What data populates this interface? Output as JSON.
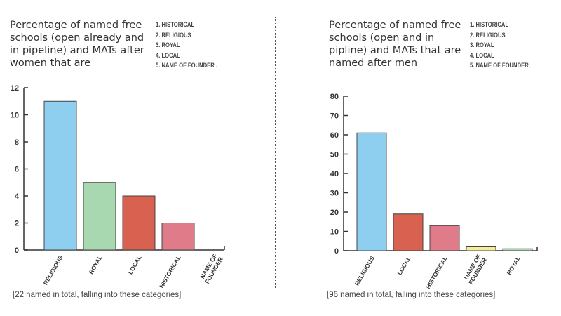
{
  "chart_data": [
    {
      "type": "bar",
      "title": "Percentage of named free schools (open already and in pipeline) and MATs after women that are",
      "title_lines": [
        "Percentage of named free",
        "schools (open already and",
        "in pipeline) and MATs after",
        "women that are"
      ],
      "legend_list": [
        "1. HISTORICAL",
        "2. RELIGIOUS",
        "3. ROYAL",
        "4. LOCAL",
        "5. NAME OF FOUNDER ."
      ],
      "categories": [
        "RELIGIOUS",
        "ROYAL",
        "LOCAL",
        "HISTORICAL",
        "NAME OF FOUNDER"
      ],
      "category_label_lines": [
        [
          "RELIGIOUS"
        ],
        [
          "ROYAL"
        ],
        [
          "LOCAL"
        ],
        [
          "HISTORICAL"
        ],
        [
          "NAME OF",
          "FOUNDER"
        ]
      ],
      "values": [
        11,
        5,
        4,
        2,
        0
      ],
      "colors": [
        "#8ecff0",
        "#a8d8b0",
        "#d9614f",
        "#e07c8a",
        "#f5ed9c"
      ],
      "ylim": [
        0,
        12
      ],
      "yticks": [
        0,
        2,
        4,
        6,
        8,
        10,
        12
      ],
      "xlabel": "",
      "ylabel": "",
      "grid": false,
      "footnote": "[22 named in total, falling into these categories]"
    },
    {
      "type": "bar",
      "title": "Percentage of named free schools (open and in pipline) and MATs that are named after men",
      "title_lines": [
        "Percentage of named free",
        "schools (open and in",
        "pipline) and MATs that are",
        "named after men"
      ],
      "legend_list": [
        "1. HISTORICAL",
        "2. RELIGIOUS",
        "3. ROYAL",
        "4. LOCAL",
        "5. NAME OF FOUNDER."
      ],
      "categories": [
        "RELIGIOUS",
        "LOCAL",
        "HISTORICAL",
        "NAME OF FOUNDER",
        "ROYAL"
      ],
      "category_label_lines": [
        [
          "RELIGIOUS"
        ],
        [
          "LOCAL"
        ],
        [
          "HISTORICAL"
        ],
        [
          "NAME OF",
          "FOUNDER"
        ],
        [
          "ROYAL"
        ]
      ],
      "values": [
        61,
        19,
        13,
        2,
        1
      ],
      "colors": [
        "#8ecff0",
        "#d9614f",
        "#e07c8a",
        "#f5ed9c",
        "#a8d8b0"
      ],
      "ylim": [
        0,
        80
      ],
      "yticks": [
        0,
        10,
        20,
        30,
        40,
        50,
        60,
        70,
        80
      ],
      "xlabel": "",
      "ylabel": "",
      "grid": false,
      "footnote": "[96 named in total, falling into these categories]"
    }
  ]
}
